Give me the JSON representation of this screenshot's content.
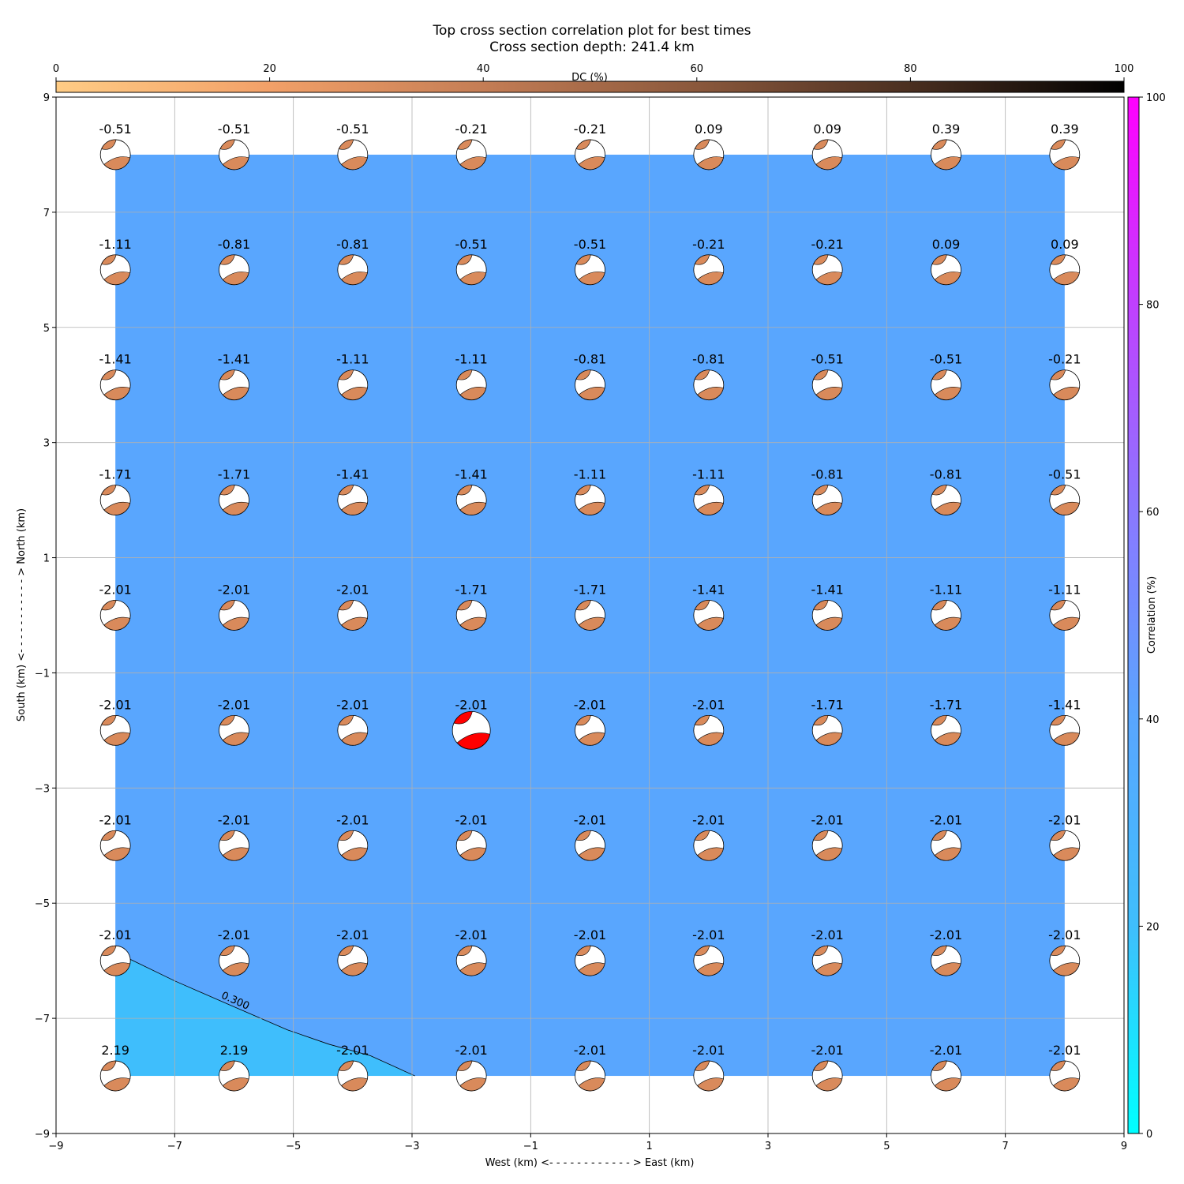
{
  "chart_data": {
    "type": "heatmap",
    "title": "Top cross section correlation plot for best times",
    "subtitle": "Cross section depth: 241.4 km",
    "xlabel": "West (km) <- - - - - - - - - - - - > East (km)",
    "ylabel": "South (km) <- - - - - - - - - - - > North (km)",
    "xlim": [
      -9,
      9
    ],
    "ylim": [
      -9,
      9
    ],
    "xticks": [
      -9,
      -7,
      -5,
      -3,
      -1,
      1,
      3,
      5,
      7,
      9
    ],
    "yticks": [
      -9,
      -7,
      -5,
      -3,
      -1,
      1,
      3,
      5,
      7,
      9
    ],
    "xtick_labels": [
      "−9",
      "−7",
      "−5",
      "−3",
      "−1",
      "1",
      "3",
      "5",
      "7",
      "9"
    ],
    "ytick_labels": [
      "−9",
      "−7",
      "−5",
      "−3",
      "−1",
      "1",
      "3",
      "5",
      "7",
      "9"
    ],
    "grid": true,
    "grid_x": [
      -8,
      -6,
      -4,
      -2,
      0,
      2,
      4,
      6,
      8
    ],
    "grid_y": [
      8,
      6,
      4,
      2,
      0,
      -2,
      -4,
      -6,
      -8
    ],
    "labels": [
      [
        "-0.51",
        "-0.51",
        "-0.51",
        "-0.21",
        "-0.21",
        "0.09",
        "0.09",
        "0.39",
        "0.39"
      ],
      [
        "-1.11",
        "-0.81",
        "-0.81",
        "-0.51",
        "-0.51",
        "-0.21",
        "-0.21",
        "0.09",
        "0.09"
      ],
      [
        "-1.41",
        "-1.41",
        "-1.11",
        "-1.11",
        "-0.81",
        "-0.81",
        "-0.51",
        "-0.51",
        "-0.21"
      ],
      [
        "-1.71",
        "-1.71",
        "-1.41",
        "-1.41",
        "-1.11",
        "-1.11",
        "-0.81",
        "-0.81",
        "-0.51"
      ],
      [
        "-2.01",
        "-2.01",
        "-2.01",
        "-1.71",
        "-1.71",
        "-1.41",
        "-1.41",
        "-1.11",
        "-1.11"
      ],
      [
        "-2.01",
        "-2.01",
        "-2.01",
        "-2.01",
        "-2.01",
        "-2.01",
        "-1.71",
        "-1.71",
        "-1.41"
      ],
      [
        "-2.01",
        "-2.01",
        "-2.01",
        "-2.01",
        "-2.01",
        "-2.01",
        "-2.01",
        "-2.01",
        "-2.01"
      ],
      [
        "-2.01",
        "-2.01",
        "-2.01",
        "-2.01",
        "-2.01",
        "-2.01",
        "-2.01",
        "-2.01",
        "-2.01"
      ],
      [
        "2.19",
        "2.19",
        "-2.01",
        "-2.01",
        "-2.01",
        "-2.01",
        "-2.01",
        "-2.01",
        "-2.01"
      ]
    ],
    "best_solution": {
      "x": -2,
      "y": -2,
      "color": "#ff0000"
    },
    "beachball_fill_color": "#d98a5b",
    "field": {
      "extent": {
        "x": [
          -8,
          8
        ],
        "y": [
          -8,
          8
        ]
      },
      "main_color": "#59a6fe",
      "low_region_color": "#3fbefc",
      "contour": {
        "label": "0.300",
        "points": [
          [
            -7.8,
            -5.95
          ],
          [
            -7.0,
            -6.35
          ],
          [
            -6.0,
            -6.8
          ],
          [
            -5.1,
            -7.2
          ],
          [
            -4.4,
            -7.45
          ],
          [
            -3.7,
            -7.65
          ],
          [
            -2.95,
            -8.0
          ]
        ]
      }
    },
    "dc_colorbar": {
      "label": "DC (%)",
      "range": [
        0,
        100
      ],
      "ticks": [
        0,
        20,
        40,
        60,
        80,
        100
      ],
      "colors": [
        "#ffcc85",
        "#f2a068",
        "#c47d55",
        "#8a583c",
        "#4a2f20",
        "#000000"
      ]
    },
    "corr_colorbar": {
      "label": "Correlation (%)",
      "range": [
        0,
        100
      ],
      "ticks": [
        0,
        20,
        40,
        60,
        80,
        100
      ],
      "colors": [
        "#00ffff",
        "#3fbefc",
        "#59a6fe",
        "#8a78ff",
        "#c040ff",
        "#ff00ff"
      ]
    }
  }
}
